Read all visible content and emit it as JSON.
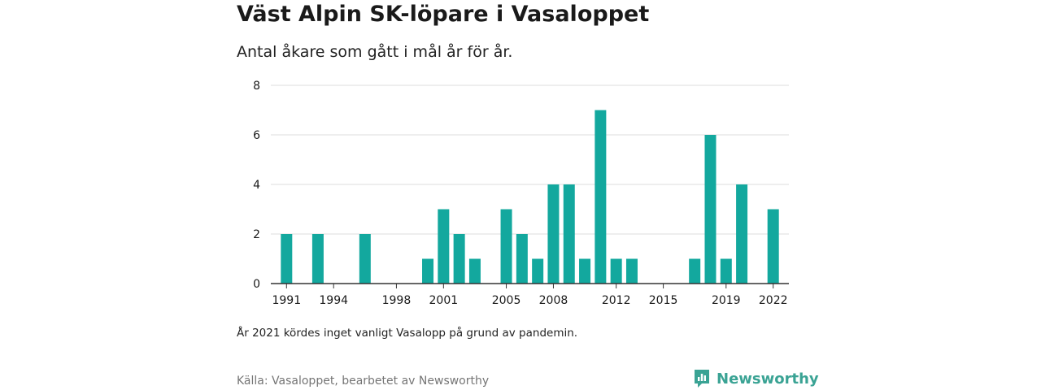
{
  "title": "Väst Alpin SK-löpare i Vasaloppet",
  "subtitle": "Antal åkare som gått i mål år för år.",
  "note": "År 2021 kördes inget vanligt Vasalopp på grund av pandemin.",
  "source": "Källa: Vasaloppet, bearbetet av Newsworthy",
  "brand": {
    "name": "Newsworthy",
    "color": "#3aa394",
    "icon": "newsworthy-logo-icon"
  },
  "colors": {
    "bar": "#13a89e",
    "grid": "#dddddd",
    "axis": "#333333"
  },
  "chart_data": {
    "type": "bar",
    "title": "Väst Alpin SK-löpare i Vasaloppet",
    "xlabel": "",
    "ylabel": "",
    "ylim": [
      0,
      8
    ],
    "yticks": [
      0,
      2,
      4,
      6,
      8
    ],
    "xlim": [
      1990,
      2023
    ],
    "xticks": [
      1991,
      1994,
      1998,
      2001,
      2005,
      2008,
      2012,
      2015,
      2019,
      2022
    ],
    "grid": true,
    "x": [
      1991,
      1993,
      1996,
      2000,
      2001,
      2002,
      2003,
      2005,
      2006,
      2007,
      2008,
      2009,
      2010,
      2011,
      2012,
      2013,
      2017,
      2018,
      2019,
      2020,
      2022
    ],
    "values": [
      2,
      2,
      2,
      1,
      3,
      2,
      1,
      3,
      2,
      1,
      4,
      4,
      1,
      7,
      1,
      1,
      1,
      6,
      1,
      4,
      3
    ]
  }
}
